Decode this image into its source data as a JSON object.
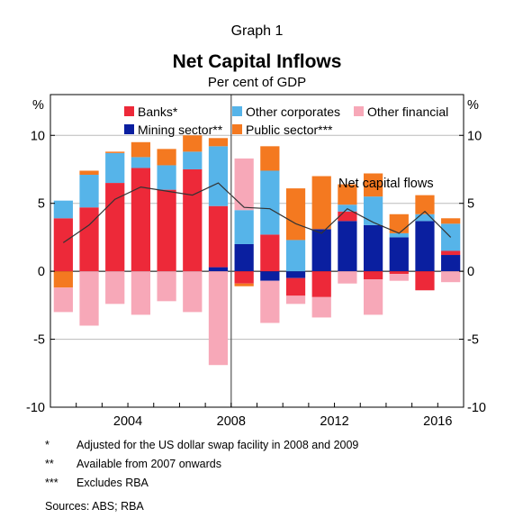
{
  "header": {
    "graph_label": "Graph 1",
    "title": "Net Capital Inflows",
    "subtitle": "Per cent of GDP"
  },
  "footnotes": [
    {
      "symbol": "*",
      "text": "Adjusted for the US dollar swap facility in 2008 and 2009"
    },
    {
      "symbol": "**",
      "text": "Available from 2007 onwards"
    },
    {
      "symbol": "***",
      "text": "Excludes RBA"
    }
  ],
  "sources": "Sources:  ABS; RBA",
  "colors": {
    "Banks*": "#ed2939",
    "Mining sector**": "#0a1fa0",
    "Other corporates": "#56b4e9",
    "Public sector***": "#f47920",
    "Other financial": "#f7a8b8",
    "Net capital flows": "#333333",
    "divider": "#555555",
    "gridline": "#bbbbbb"
  },
  "chart_data": {
    "type": "bar",
    "stacked": true,
    "unit_left": "%",
    "unit_right": "%",
    "ylim": [
      -10,
      13
    ],
    "yticks": [
      -10,
      -5,
      0,
      5,
      10
    ],
    "xtick_labels": [
      "2004",
      "2008",
      "2012",
      "2016"
    ],
    "xtick_years": [
      2004,
      2008,
      2012,
      2016
    ],
    "categories": [
      2001,
      2002,
      2003,
      2004,
      2005,
      2006,
      2007,
      2008,
      2009,
      2010,
      2011,
      2012,
      2013,
      2014,
      2015,
      2016
    ],
    "vertical_divider_after": 2007,
    "line_label": "Net capital flows",
    "legend_rows": [
      [
        "Banks*",
        "Other corporates",
        "Other financial"
      ],
      [
        "Mining sector**",
        "Public sector***"
      ]
    ],
    "series": [
      {
        "name": "Mining sector**",
        "values": [
          0,
          0,
          0,
          0,
          0,
          0,
          0.3,
          2.0,
          -0.7,
          -0.5,
          3.1,
          3.7,
          3.4,
          2.5,
          3.7,
          1.2
        ]
      },
      {
        "name": "Banks*",
        "values": [
          3.9,
          4.7,
          6.5,
          7.6,
          6.0,
          7.5,
          4.5,
          -0.9,
          2.7,
          -1.3,
          -1.9,
          0.7,
          -0.6,
          -0.2,
          -1.4,
          0.3
        ]
      },
      {
        "name": "Other corporates",
        "values": [
          1.3,
          2.4,
          2.2,
          0.8,
          1.8,
          1.3,
          4.4,
          2.5,
          4.7,
          2.3,
          0,
          0.5,
          2.1,
          0.3,
          0.5,
          2.0
        ]
      },
      {
        "name": "Public sector***",
        "values": [
          -1.2,
          0.3,
          0.1,
          1.1,
          1.2,
          1.2,
          0.6,
          -0.2,
          1.8,
          3.8,
          3.9,
          1.5,
          1.7,
          1.4,
          1.4,
          0.4
        ]
      },
      {
        "name": "Other financial",
        "values": [
          -1.8,
          -4.0,
          -2.4,
          -3.2,
          -2.2,
          -3.0,
          -6.9,
          3.8,
          -3.1,
          -0.6,
          -1.5,
          -0.9,
          -2.6,
          -0.5,
          0,
          -0.8
        ]
      }
    ],
    "line": {
      "name": "Net capital flows",
      "values": [
        2.1,
        3.4,
        5.3,
        6.2,
        5.9,
        5.6,
        6.5,
        4.7,
        4.6,
        3.5,
        2.8,
        4.6,
        3.6,
        2.8,
        4.4,
        2.5
      ]
    }
  }
}
